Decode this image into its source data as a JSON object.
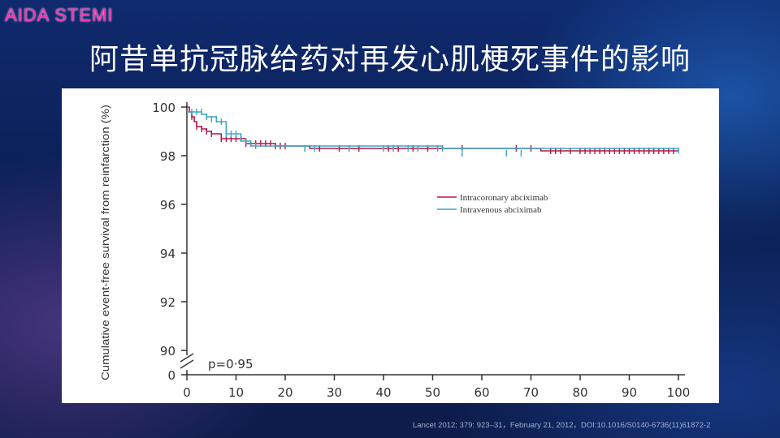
{
  "header": {
    "brand": "AIDA STEMI",
    "title": "阿昔单抗冠脉给药对再发心肌梗死事件的影响"
  },
  "footer": {
    "citation": "Lancet 2012; 379: 923–31，February 21, 2012，DOI:10.1016/S0140-6736(11)61872-2"
  },
  "chart_data": {
    "type": "line",
    "title": "",
    "xlabel": "",
    "ylabel": "Cumulative event-free survival from reinfarction (%)",
    "x_ticks": [
      0,
      10,
      20,
      30,
      40,
      50,
      60,
      70,
      80,
      90,
      100
    ],
    "y_ticks": [
      0,
      90,
      92,
      94,
      96,
      98,
      100
    ],
    "xlim": [
      0,
      100
    ],
    "ylim": [
      90,
      100
    ],
    "y_axis_break": true,
    "grid": false,
    "legend_position": "center-right",
    "annotation": "p=0·95",
    "series": [
      {
        "name": "Intracoronary abciximab",
        "color": "#b5174b",
        "x": [
          0,
          0.5,
          1,
          1.5,
          2,
          3,
          4,
          5,
          7,
          12,
          18,
          25,
          72,
          100
        ],
        "y": [
          100,
          99.8,
          99.6,
          99.4,
          99.2,
          99.1,
          99.0,
          98.9,
          98.7,
          98.5,
          98.4,
          98.3,
          98.2,
          98.2
        ],
        "censor_x": [
          1,
          2,
          3,
          4,
          5,
          7,
          8,
          9,
          10,
          11,
          12,
          13,
          14,
          15,
          16,
          17,
          18,
          19,
          20,
          24,
          27,
          31,
          35,
          41,
          43,
          46,
          49,
          56,
          67,
          70,
          74,
          75,
          76,
          78,
          80,
          81,
          82,
          83,
          84,
          85,
          86,
          87,
          88,
          89,
          90,
          91,
          92,
          93,
          94,
          95,
          96,
          97,
          98,
          99
        ],
        "censor_y": [
          99.6,
          99.2,
          99.1,
          99.0,
          98.9,
          98.7,
          98.7,
          98.7,
          98.7,
          98.7,
          98.5,
          98.5,
          98.5,
          98.5,
          98.5,
          98.5,
          98.4,
          98.4,
          98.4,
          98.3,
          98.3,
          98.3,
          98.3,
          98.3,
          98.3,
          98.3,
          98.3,
          98.3,
          98.3,
          98.3,
          98.2,
          98.2,
          98.2,
          98.2,
          98.2,
          98.2,
          98.2,
          98.2,
          98.2,
          98.2,
          98.2,
          98.2,
          98.2,
          98.2,
          98.2,
          98.2,
          98.2,
          98.2,
          98.2,
          98.2,
          98.2,
          98.2,
          98.2,
          98.2
        ]
      },
      {
        "name": "Intravenous abciximab",
        "color": "#3aa7c4",
        "x": [
          0,
          3,
          4,
          6,
          8,
          11,
          13,
          52,
          100
        ],
        "y": [
          99.8,
          99.7,
          99.6,
          99.4,
          98.9,
          98.6,
          98.4,
          98.3,
          98.1
        ],
        "censor_x": [
          1,
          2,
          3,
          4,
          5,
          6,
          7,
          8,
          9,
          10,
          12,
          14,
          24,
          26,
          33,
          40,
          42,
          45,
          47,
          51,
          52,
          56,
          65,
          68
        ],
        "censor_y": [
          99.8,
          99.8,
          99.8,
          99.6,
          99.5,
          99.5,
          99.4,
          98.9,
          98.9,
          98.9,
          98.6,
          98.4,
          98.3,
          98.3,
          98.3,
          98.3,
          98.3,
          98.3,
          98.3,
          98.3,
          98.3,
          98.1,
          98.1,
          98.1
        ]
      }
    ]
  }
}
